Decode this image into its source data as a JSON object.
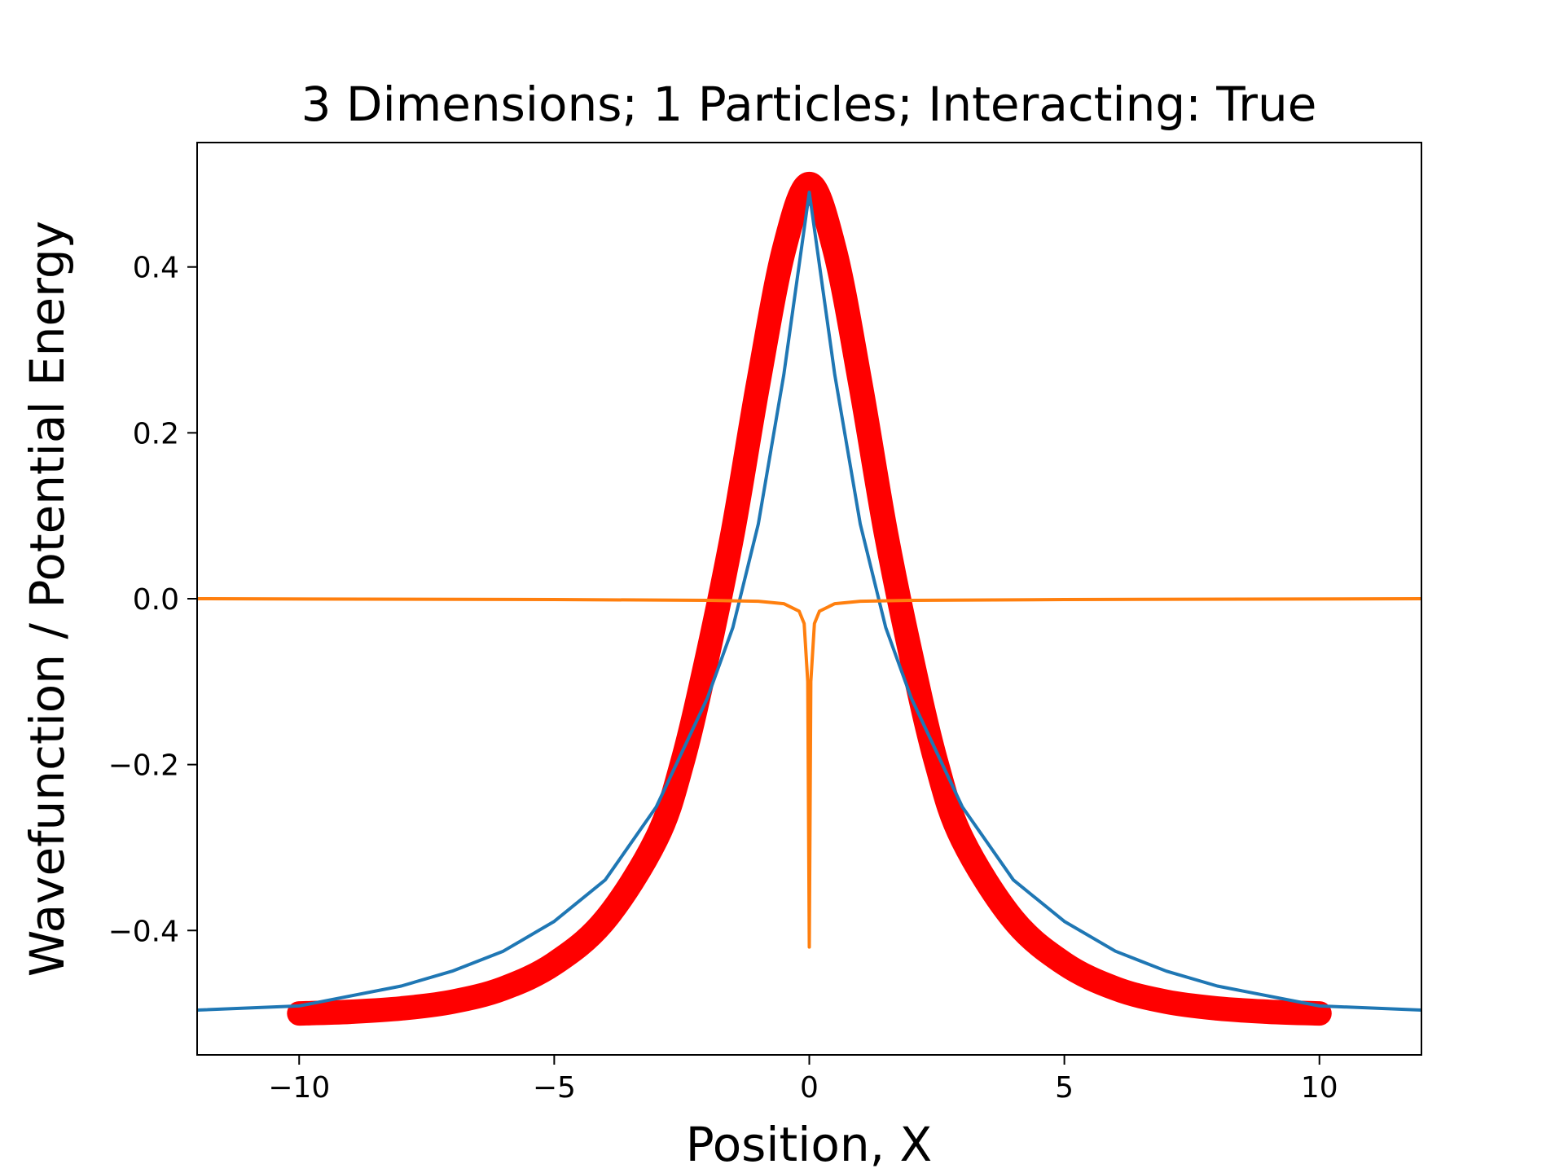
{
  "chart_data": {
    "type": "line",
    "title": "3 Dimensions; 1 Particles; Interacting: True",
    "xlabel": "Position, X",
    "ylabel": "Wavefunction / Potential Energy",
    "xlim": [
      -12,
      12
    ],
    "ylim": [
      -0.55,
      0.55
    ],
    "xticks": [
      -10,
      -5,
      0,
      5,
      10
    ],
    "xtick_labels": [
      "−10",
      "−5",
      "0",
      "5",
      "10"
    ],
    "yticks": [
      -0.4,
      -0.2,
      0.0,
      0.2,
      0.4
    ],
    "ytick_labels": [
      "−0.4",
      "−0.2",
      "0.0",
      "0.2",
      "0.4"
    ],
    "grid": false,
    "legend": "none",
    "series": [
      {
        "color": "#ff0000",
        "style": "thick",
        "x": [
          -10,
          -9,
          -8,
          -7,
          -6,
          -5,
          -4,
          -3,
          -2.5,
          -2,
          -1.5,
          -1,
          -0.5,
          0,
          0.5,
          1,
          1.5,
          2,
          2.5,
          3,
          4,
          5,
          6,
          7,
          8,
          9,
          10
        ],
        "y": [
          -0.5,
          -0.498,
          -0.494,
          -0.486,
          -0.47,
          -0.44,
          -0.387,
          -0.29,
          -0.2,
          -0.07,
          0.08,
          0.26,
          0.42,
          0.5,
          0.42,
          0.26,
          0.08,
          -0.07,
          -0.2,
          -0.29,
          -0.387,
          -0.44,
          -0.47,
          -0.486,
          -0.494,
          -0.498,
          -0.5
        ]
      },
      {
        "color": "#1f77b4",
        "style": "thin",
        "x": [
          -12,
          -10,
          -8,
          -7,
          -6,
          -5,
          -4,
          -3,
          -2,
          -1.5,
          -1,
          -0.5,
          0,
          0.5,
          1,
          1.5,
          2,
          3,
          4,
          5,
          6,
          7,
          8,
          10,
          12
        ],
        "y": [
          -0.496,
          -0.491,
          -0.467,
          -0.449,
          -0.425,
          -0.389,
          -0.339,
          -0.251,
          -0.12,
          -0.035,
          0.09,
          0.27,
          0.49,
          0.27,
          0.09,
          -0.035,
          -0.12,
          -0.251,
          -0.339,
          -0.389,
          -0.425,
          -0.449,
          -0.467,
          -0.491,
          -0.496
        ]
      },
      {
        "color": "#ff7f0e",
        "style": "thin",
        "x": [
          -12,
          -5,
          -2,
          -1,
          -0.5,
          -0.2,
          -0.1,
          -0.03,
          0,
          0.03,
          0.1,
          0.2,
          0.5,
          1,
          2,
          5,
          12
        ],
        "y": [
          0,
          -0.001,
          -0.002,
          -0.003,
          -0.006,
          -0.015,
          -0.03,
          -0.1,
          -0.42,
          -0.1,
          -0.03,
          -0.015,
          -0.006,
          -0.003,
          -0.002,
          -0.001,
          0
        ]
      }
    ]
  }
}
